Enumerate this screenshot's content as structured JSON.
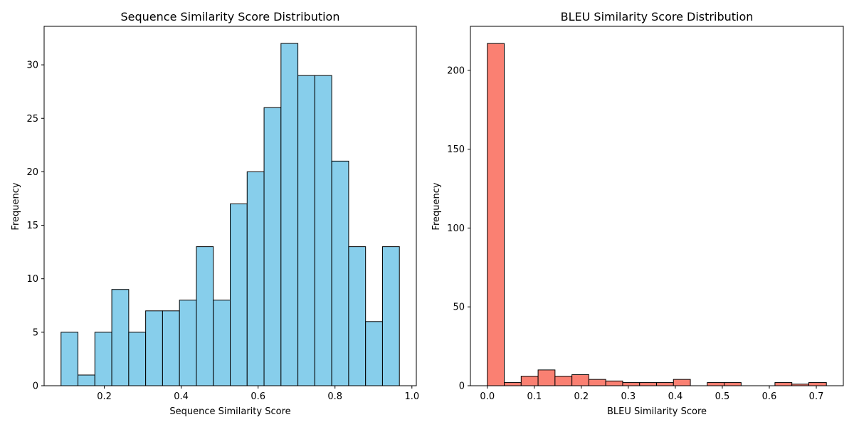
{
  "chart_data": [
    {
      "type": "bar",
      "title": "Sequence Similarity Score Distribution",
      "xlabel": "Sequence Similarity Score",
      "ylabel": "Frequency",
      "bar_color": "#87ceeb",
      "edge_color": "#000000",
      "xlim": [
        0.0435,
        1.0115
      ],
      "ylim": [
        0,
        33.6
      ],
      "x_ticks": [
        0.2,
        0.4,
        0.6,
        0.8,
        1.0
      ],
      "x_tick_labels": [
        "0.2",
        "0.4",
        "0.6",
        "0.8",
        "1.0"
      ],
      "y_ticks": [
        0,
        5,
        10,
        15,
        20,
        25,
        30
      ],
      "y_tick_labels": [
        "0",
        "5",
        "10",
        "15",
        "20",
        "25",
        "30"
      ],
      "bin_edges": [
        0.0875,
        0.1315,
        0.1755,
        0.2195,
        0.2635,
        0.3075,
        0.3515,
        0.3955,
        0.4395,
        0.4835,
        0.5275,
        0.5715,
        0.6155,
        0.6595,
        0.7035,
        0.7475,
        0.7915,
        0.8355,
        0.8795,
        0.9235,
        0.9675
      ],
      "values": [
        5,
        1,
        5,
        9,
        5,
        7,
        7,
        8,
        13,
        8,
        17,
        20,
        26,
        32,
        29,
        29,
        21,
        13,
        6,
        13
      ]
    },
    {
      "type": "bar",
      "title": "BLEU Similarity Score Distribution",
      "xlabel": "BLEU Similarity Score",
      "ylabel": "Frequency",
      "bar_color": "#fa8072",
      "edge_color": "#000000",
      "xlim": [
        -0.036,
        0.7575
      ],
      "ylim": [
        0,
        227.9
      ],
      "x_ticks": [
        0.0,
        0.1,
        0.2,
        0.3,
        0.4,
        0.5,
        0.6,
        0.7
      ],
      "x_tick_labels": [
        "0.0",
        "0.1",
        "0.2",
        "0.3",
        "0.4",
        "0.5",
        "0.6",
        "0.7"
      ],
      "y_ticks": [
        0,
        50,
        100,
        150,
        200
      ],
      "y_tick_labels": [
        "0",
        "50",
        "100",
        "150",
        "200"
      ],
      "bin_edges": [
        0.0,
        0.036,
        0.072,
        0.108,
        0.144,
        0.18,
        0.216,
        0.252,
        0.288,
        0.324,
        0.36,
        0.396,
        0.432,
        0.468,
        0.504,
        0.54,
        0.576,
        0.612,
        0.648,
        0.684,
        0.7215
      ],
      "values": [
        217,
        2,
        6,
        10,
        6,
        7,
        4,
        3,
        2,
        2,
        2,
        4,
        0,
        2,
        2,
        0,
        0,
        2,
        1,
        2
      ]
    }
  ]
}
